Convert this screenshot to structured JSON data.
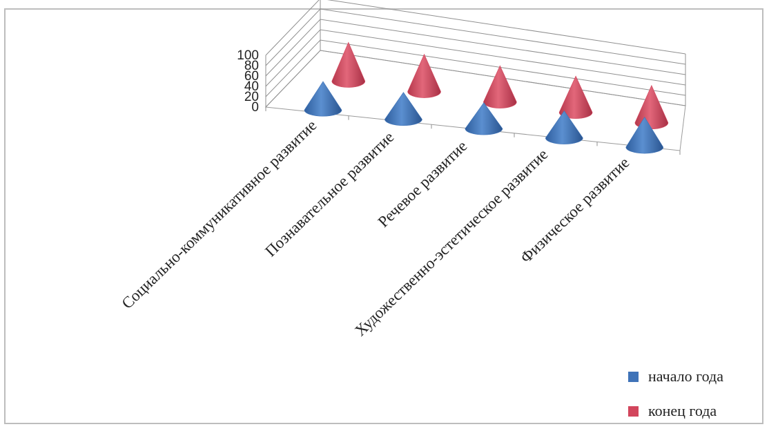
{
  "chart_data": {
    "type": "bar",
    "style": "3d-cone",
    "categories": [
      "Социально-коммуникативное развитие",
      "Познавательное развитие",
      "Речевое развитие",
      "Художественно-эстетическое развитие",
      "Физическое развитие"
    ],
    "series": [
      {
        "name": "начало года",
        "color": "#3f73b8",
        "values": [
          55,
          52,
          50,
          52,
          58
        ]
      },
      {
        "name": "конец года",
        "color": "#d2455c",
        "values": [
          75,
          72,
          70,
          70,
          72
        ]
      }
    ],
    "ylim": [
      0,
      100
    ],
    "yticks": [
      "0",
      "20",
      "40",
      "60",
      "80",
      "100"
    ],
    "grid": true,
    "legend_position": "bottom-right"
  }
}
